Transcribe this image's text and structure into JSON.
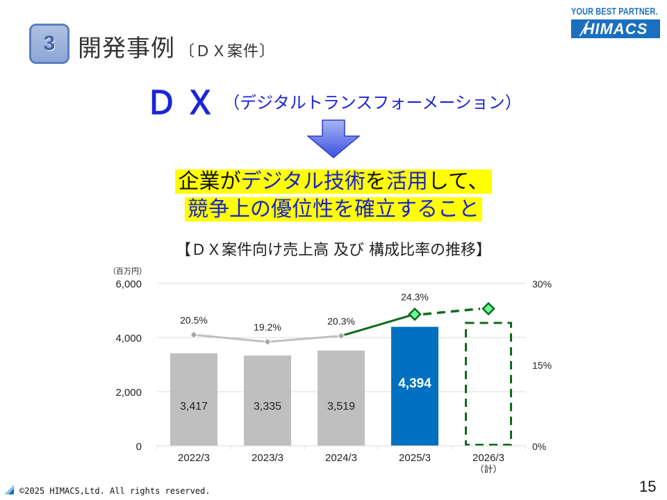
{
  "header": {
    "section_number": "3",
    "title": "開発事例",
    "subtitle": "〔ＤＸ案件〕",
    "logo_tagline": "YOUR BEST PARTNER.",
    "logo_name": "HIMACS"
  },
  "intro": {
    "dx_abbrev": "ＤＸ",
    "dx_full": "（デジタルトランスフォーメーション）",
    "definition_line1_black": "企業が",
    "definition_line1_blue": "デジタル技術",
    "definition_line1_black2": "を",
    "definition_line1_blue2": "活用",
    "definition_line1_black3": "して、",
    "definition_line2": "競争上の優位性を確立すること"
  },
  "chart_data": {
    "type": "bar",
    "title": "【ＤＸ案件向け売上高 及び 構成比率の推移】",
    "y_unit_label": "（百万円）",
    "categories": [
      "2022/3",
      "2023/3",
      "2024/3",
      "2025/3",
      "2026/3"
    ],
    "category_notes": [
      "",
      "",
      "",
      "",
      "（計）"
    ],
    "ylim": [
      0,
      6000
    ],
    "y_ticks": [
      "0",
      "2,000",
      "4,000",
      "6,000"
    ],
    "y_tick_values": [
      0,
      2000,
      4000,
      6000
    ],
    "y2lim": [
      0,
      30
    ],
    "y2_ticks": [
      "0%",
      "15%",
      "30%"
    ],
    "y2_tick_values": [
      0,
      15,
      30
    ],
    "grid": true,
    "series": [
      {
        "name": "DX案件向け売上高",
        "kind": "bar",
        "values": [
          3417,
          3335,
          3519,
          4394,
          4540
        ],
        "labels": [
          "3,417",
          "3,335",
          "3,519",
          "4,394",
          ""
        ],
        "styles": [
          "actual",
          "actual",
          "actual",
          "highlight",
          "plan"
        ]
      },
      {
        "name": "構成比率",
        "kind": "line",
        "axis": "right",
        "values": [
          20.5,
          19.2,
          20.3,
          24.3,
          25.3
        ],
        "labels": [
          "20.5%",
          "19.2%",
          "20.3%",
          "24.3%",
          ""
        ]
      }
    ],
    "colors": {
      "bar_actual": "#bfbfbf",
      "bar_highlight": "#0070c0",
      "plan_outline": "#0b6b1a",
      "line_past": "#bfbfbf",
      "line_recent": "#0b6b1a",
      "marker_past": "#a6a6a6",
      "marker_recent": "#66ff99",
      "grid": "#d9d9d9"
    }
  },
  "footer": {
    "copyright": "©2025 HIMACS,Ltd. All rights reserved.",
    "page_number": "15"
  }
}
